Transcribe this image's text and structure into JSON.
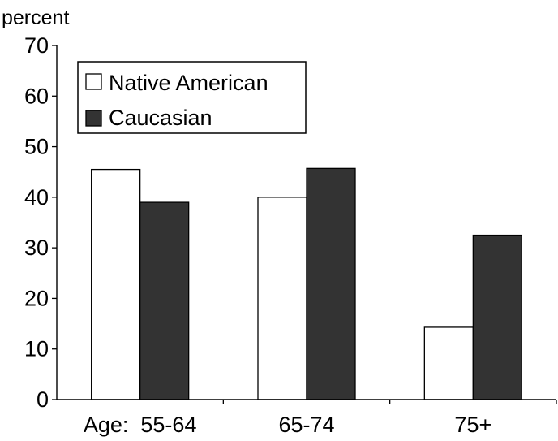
{
  "chart_data": {
    "type": "bar",
    "title": "",
    "ylabel": "percent",
    "xlabel": "",
    "categories": [
      "Age:  55-64",
      "65-74",
      "75+"
    ],
    "series": [
      {
        "name": "Native American",
        "values": [
          45.5,
          40.0,
          14.3
        ],
        "color": "#ffffff"
      },
      {
        "name": "Caucasian",
        "values": [
          39.0,
          45.7,
          32.5
        ],
        "color": "#333333"
      }
    ],
    "ylim": [
      0,
      70
    ],
    "yticks": [
      0,
      10,
      20,
      30,
      40,
      50,
      60,
      70
    ],
    "grid": false,
    "legend_position": "top-left"
  }
}
